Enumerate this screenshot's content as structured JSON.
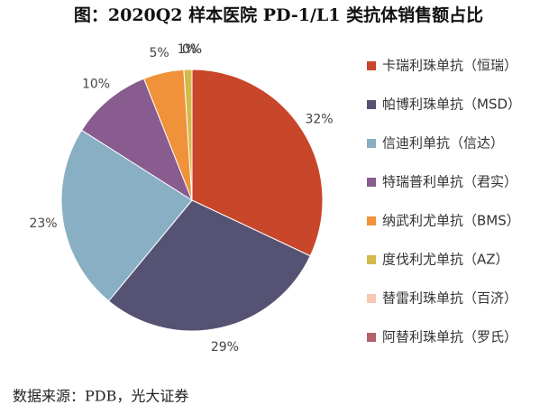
{
  "chart_data": {
    "type": "pie",
    "title": "图：2020Q2 样本医院 PD-1/L1 类抗体销售额占比",
    "categories": [
      "卡瑞利珠单抗（恒瑞）",
      "帕博利珠单抗（MSD）",
      "信迪利单抗（信达）",
      "特瑞普利单抗（君实）",
      "纳武利尤单抗（BMS）",
      "度伐利尤单抗（AZ）",
      "替雷利珠单抗（百济）",
      "阿替利珠单抗（罗氏）"
    ],
    "values": [
      32,
      29,
      23,
      10,
      5,
      1,
      0,
      0
    ],
    "value_labels": [
      "32%",
      "29%",
      "23%",
      "10%",
      "5%",
      "1%",
      "0%",
      "0%"
    ],
    "colors": [
      "#c8462a",
      "#555273",
      "#89afc4",
      "#885c8e",
      "#f0923a",
      "#d4b94a",
      "#f7c7b4",
      "#b3636b"
    ],
    "legend": "right",
    "source": "数据来源：PDB，光大证券"
  }
}
